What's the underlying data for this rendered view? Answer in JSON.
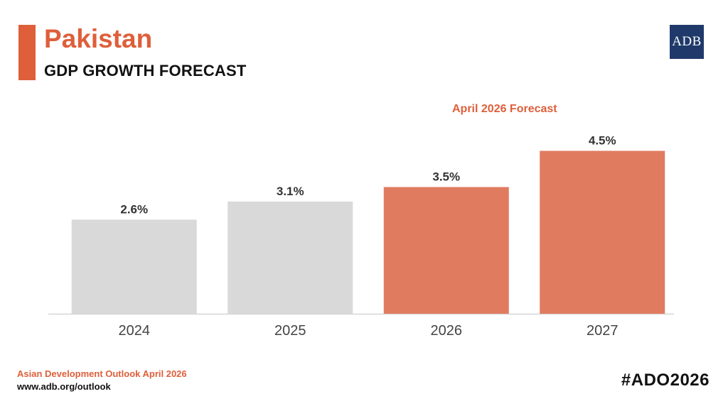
{
  "header": {
    "title": "Pakistan",
    "subtitle": "GDP GROWTH FORECAST",
    "logo_text": "ADB"
  },
  "forecast_label": "April 2026 Forecast",
  "footer": {
    "source": "Asian Development Outlook April 2026",
    "url": "www.adb.org/outlook",
    "hashtag": "#ADO2026"
  },
  "colors": {
    "accent": "#de5f3a",
    "actual_bar": "#d9d9d9",
    "forecast_bar": "#e07b60",
    "logo_bg": "#1f3a6a"
  },
  "chart_data": {
    "type": "bar",
    "categories": [
      "2024",
      "2025",
      "2026",
      "2027"
    ],
    "values": [
      2.6,
      3.1,
      3.5,
      4.5
    ],
    "data_labels": [
      "2.6%",
      "3.1%",
      "3.5%",
      "4.5%"
    ],
    "forecast": [
      false,
      false,
      true,
      true
    ],
    "title": "",
    "xlabel": "",
    "ylabel": "",
    "ylim": [
      0,
      5
    ],
    "grid": false,
    "legend": "none"
  }
}
